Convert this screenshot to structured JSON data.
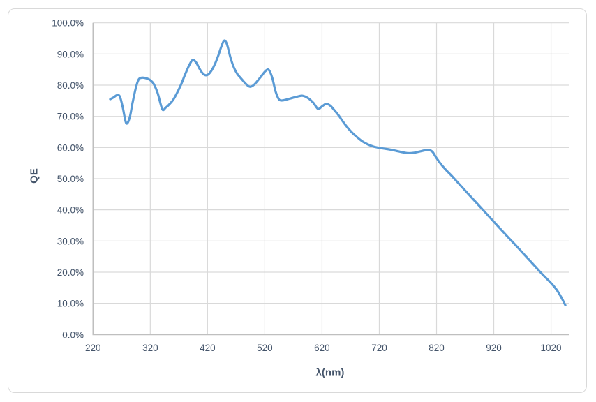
{
  "chart_data": {
    "type": "line",
    "title": "",
    "xlabel": "λ(nm)",
    "ylabel": "QE",
    "y_unit": "%",
    "xlim": [
      220,
      1051
    ],
    "ylim": [
      0,
      100
    ],
    "grid": true,
    "legend": "none",
    "x_ticks": [
      220,
      320,
      420,
      520,
      620,
      720,
      820,
      920,
      1020
    ],
    "x_tick_labels": [
      "220",
      "320",
      "420",
      "520",
      "620",
      "720",
      "820",
      "920",
      "1020"
    ],
    "y_ticks": [
      0,
      10,
      20,
      30,
      40,
      50,
      60,
      70,
      80,
      90,
      100
    ],
    "y_tick_labels": [
      "0.0%",
      "10.0%",
      "20.0%",
      "30.0%",
      "40.0%",
      "50.0%",
      "60.0%",
      "70.0%",
      "80.0%",
      "90.0%",
      "100.0%"
    ],
    "colors": {
      "series_line": "#5B9BD5",
      "gridline": "#D9D9D9",
      "axis_line": "#BFBFBF",
      "label_text": "#44546A",
      "frame_border": "#D9D9D9",
      "background": "#FFFFFF"
    },
    "series": [
      {
        "name": "QE",
        "smooth": true,
        "points": [
          [
            250,
            75.5
          ],
          [
            256,
            76.1
          ],
          [
            262,
            76.8
          ],
          [
            267,
            76.3
          ],
          [
            272,
            72.8
          ],
          [
            278,
            67.8
          ],
          [
            284,
            69.6
          ],
          [
            289,
            74.3
          ],
          [
            295,
            79.3
          ],
          [
            300,
            81.9
          ],
          [
            306,
            82.4
          ],
          [
            313,
            82.2
          ],
          [
            320,
            81.6
          ],
          [
            326,
            80.4
          ],
          [
            333,
            77.4
          ],
          [
            341,
            72.3
          ],
          [
            347,
            72.8
          ],
          [
            353,
            73.8
          ],
          [
            360,
            75.3
          ],
          [
            367,
            77.6
          ],
          [
            374,
            80.3
          ],
          [
            381,
            83.5
          ],
          [
            388,
            86.4
          ],
          [
            394,
            88.1
          ],
          [
            400,
            87.3
          ],
          [
            406,
            85.3
          ],
          [
            411,
            83.9
          ],
          [
            416,
            83.2
          ],
          [
            421,
            83.4
          ],
          [
            427,
            84.7
          ],
          [
            433,
            86.8
          ],
          [
            439,
            89.6
          ],
          [
            444,
            92.3
          ],
          [
            449,
            94.3
          ],
          [
            454,
            93.1
          ],
          [
            460,
            88.9
          ],
          [
            466,
            85.7
          ],
          [
            472,
            83.6
          ],
          [
            478,
            82.3
          ],
          [
            484,
            81.0
          ],
          [
            490,
            79.9
          ],
          [
            495,
            79.5
          ],
          [
            501,
            80.1
          ],
          [
            507,
            81.3
          ],
          [
            514,
            82.9
          ],
          [
            521,
            84.5
          ],
          [
            527,
            84.9
          ],
          [
            533,
            82.4
          ],
          [
            539,
            77.9
          ],
          [
            545,
            75.4
          ],
          [
            551,
            75.1
          ],
          [
            558,
            75.4
          ],
          [
            566,
            75.8
          ],
          [
            576,
            76.3
          ],
          [
            586,
            76.6
          ],
          [
            596,
            75.8
          ],
          [
            605,
            74.3
          ],
          [
            613,
            72.4
          ],
          [
            620,
            73.2
          ],
          [
            627,
            74.0
          ],
          [
            634,
            73.5
          ],
          [
            641,
            72.1
          ],
          [
            649,
            70.3
          ],
          [
            657,
            68.2
          ],
          [
            665,
            66.3
          ],
          [
            673,
            64.7
          ],
          [
            682,
            63.2
          ],
          [
            691,
            61.9
          ],
          [
            700,
            61.0
          ],
          [
            710,
            60.3
          ],
          [
            720,
            59.9
          ],
          [
            730,
            59.6
          ],
          [
            740,
            59.3
          ],
          [
            750,
            58.9
          ],
          [
            760,
            58.5
          ],
          [
            770,
            58.2
          ],
          [
            780,
            58.3
          ],
          [
            790,
            58.7
          ],
          [
            800,
            59.1
          ],
          [
            807,
            59.2
          ],
          [
            813,
            58.6
          ],
          [
            820,
            56.6
          ],
          [
            828,
            54.6
          ],
          [
            836,
            52.9
          ],
          [
            845,
            51.2
          ],
          [
            855,
            49.2
          ],
          [
            870,
            46.2
          ],
          [
            885,
            43.2
          ],
          [
            900,
            40.2
          ],
          [
            915,
            37.2
          ],
          [
            930,
            34.2
          ],
          [
            945,
            31.2
          ],
          [
            960,
            28.3
          ],
          [
            975,
            25.3
          ],
          [
            990,
            22.3
          ],
          [
            1005,
            19.3
          ],
          [
            1020,
            16.5
          ],
          [
            1030,
            14.3
          ],
          [
            1038,
            11.9
          ],
          [
            1045,
            9.4
          ]
        ]
      }
    ]
  }
}
